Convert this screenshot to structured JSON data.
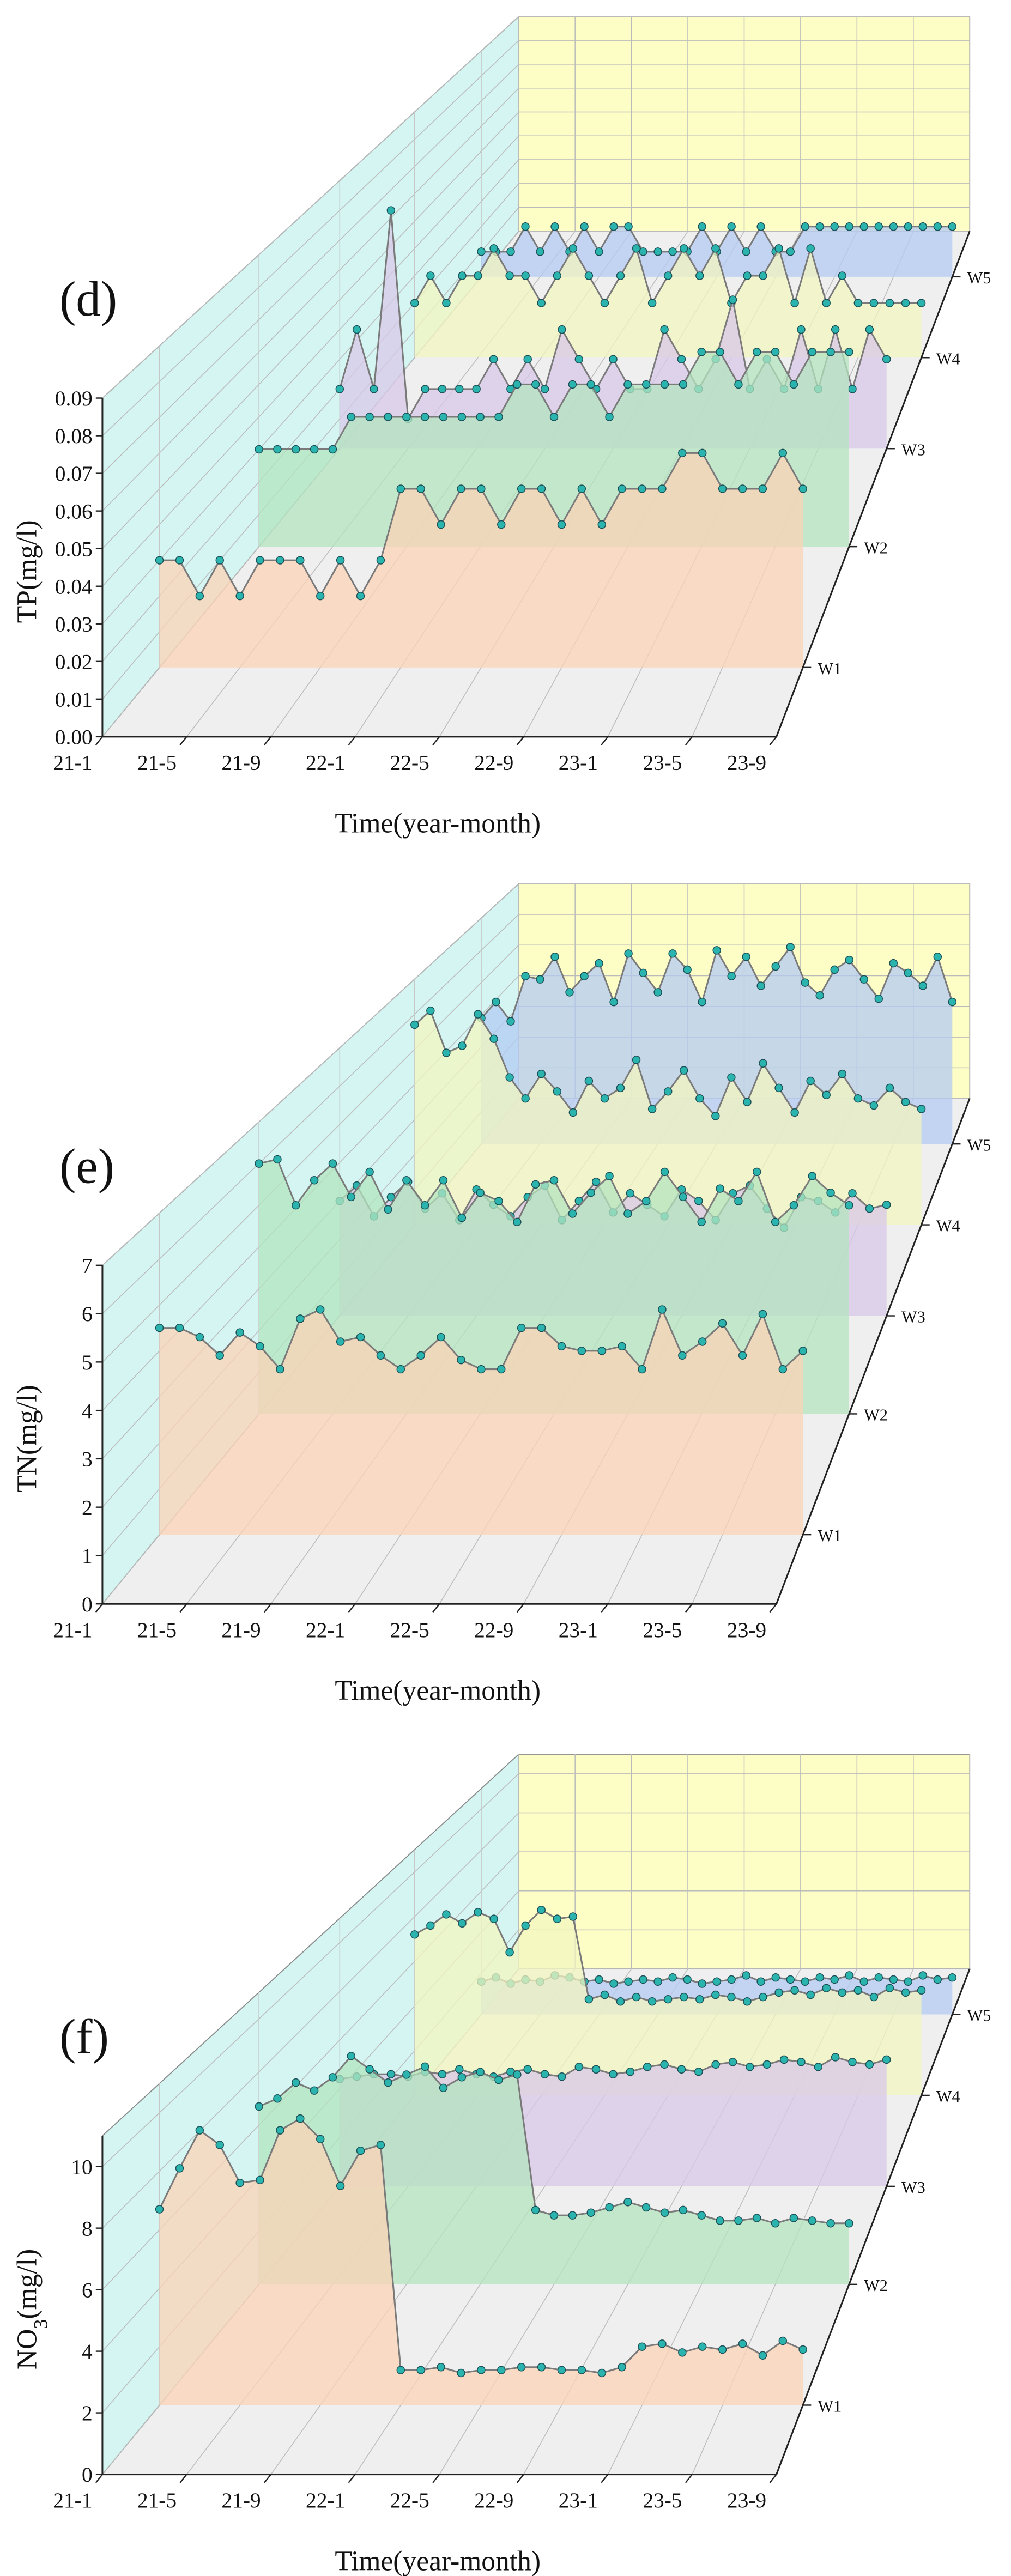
{
  "chart_data": [
    {
      "type": "waterfall",
      "panel_label": "(d)",
      "y_label": "TP(mg/l)",
      "x_label": "Time(year-month)",
      "categories": [
        "21-1",
        null,
        null,
        null,
        "21-5",
        null,
        null,
        null,
        "21-9",
        null,
        null,
        null,
        "22-1",
        null,
        null,
        null,
        "22-5",
        null,
        null,
        null,
        "22-9",
        null,
        null,
        null,
        "23-1",
        null,
        null,
        null,
        "23-5",
        null,
        null,
        null,
        "23-9"
      ],
      "ylim": [
        0,
        0.09
      ],
      "yticks": [
        {
          "value": 0,
          "label": "0.00"
        },
        0.01,
        0.02,
        0.03,
        0.04,
        0.05,
        0.06,
        0.07,
        0.08,
        0.09
      ],
      "line_color": "#7a7a7a",
      "marker_color": "#2bb3ae",
      "grid": true,
      "series": [
        {
          "name": "W1",
          "color": "#fcd3b6",
          "values": [
            0.03,
            0.03,
            0.02,
            0.03,
            0.02,
            0.03,
            0.03,
            0.03,
            0.02,
            0.03,
            0.02,
            0.03,
            0.05,
            0.05,
            0.04,
            0.05,
            0.05,
            0.04,
            0.05,
            0.05,
            0.04,
            0.05,
            0.04,
            0.05,
            0.05,
            0.05,
            0.06,
            0.06,
            0.05,
            0.05,
            0.05,
            0.06,
            0.05
          ]
        },
        {
          "name": "W2",
          "color": "#b3e4bf",
          "values": [
            0.03,
            0.03,
            0.03,
            0.03,
            0.03,
            0.04,
            0.04,
            0.04,
            0.04,
            0.04,
            0.04,
            0.04,
            0.04,
            0.04,
            0.05,
            0.05,
            0.04,
            0.05,
            0.05,
            0.04,
            0.05,
            0.05,
            0.05,
            0.05,
            0.06,
            0.06,
            0.05,
            0.06,
            0.06,
            0.05,
            0.06,
            0.06,
            0.06
          ]
        },
        {
          "name": "W3",
          "color": "#d8c8e8",
          "values": [
            0.02,
            0.04,
            0.02,
            0.08,
            0.01,
            0.02,
            0.02,
            0.02,
            0.02,
            0.03,
            0.02,
            0.03,
            0.02,
            0.04,
            0.03,
            0.02,
            0.03,
            0.02,
            0.02,
            0.04,
            0.03,
            0.02,
            0.03,
            0.05,
            0.02,
            0.03,
            0.02,
            0.04,
            0.02,
            0.04,
            0.02,
            0.04,
            0.03
          ]
        },
        {
          "name": "W4",
          "color": "#f3f5bf",
          "values": [
            0.02,
            0.03,
            0.02,
            0.03,
            0.03,
            0.04,
            0.03,
            0.03,
            0.02,
            0.03,
            0.04,
            0.03,
            0.02,
            0.03,
            0.04,
            0.02,
            0.03,
            0.04,
            0.03,
            0.04,
            0.02,
            0.03,
            0.03,
            0.04,
            0.02,
            0.04,
            0.02,
            0.03,
            0.02,
            0.02,
            0.02,
            0.02,
            0.02
          ]
        },
        {
          "name": "W5",
          "color": "#b3cbf1",
          "values": [
            0.01,
            0.01,
            0.01,
            0.02,
            0.01,
            0.02,
            0.01,
            0.02,
            0.01,
            0.02,
            0.02,
            0.01,
            0.01,
            0.01,
            0.01,
            0.02,
            0.01,
            0.02,
            0.01,
            0.02,
            0.01,
            0.01,
            0.02,
            0.02,
            0.02,
            0.02,
            0.02,
            0.02,
            0.02,
            0.02,
            0.02,
            0.02,
            0.02
          ]
        }
      ]
    },
    {
      "type": "waterfall",
      "panel_label": "(e)",
      "y_label": "TN(mg/l)",
      "x_label": "Time(year-month)",
      "categories": [
        "21-1",
        null,
        null,
        null,
        "21-5",
        null,
        null,
        null,
        "21-9",
        null,
        null,
        null,
        "22-1",
        null,
        null,
        null,
        "22-5",
        null,
        null,
        null,
        "22-9",
        null,
        null,
        null,
        "23-1",
        null,
        null,
        null,
        "23-5",
        null,
        null,
        null,
        "23-9"
      ],
      "ylim": [
        0,
        7
      ],
      "yticks": [
        0,
        1,
        2,
        3,
        4,
        5,
        6,
        7
      ],
      "line_color": "#7a7a7a",
      "marker_color": "#2bb3ae",
      "grid": true,
      "series": [
        {
          "name": "W1",
          "color": "#fcd3b6",
          "values": [
            4.5,
            4.5,
            4.3,
            3.9,
            4.4,
            4.1,
            3.6,
            4.7,
            4.9,
            4.2,
            4.3,
            3.9,
            3.6,
            3.9,
            4.3,
            3.8,
            3.6,
            3.6,
            4.5,
            4.5,
            4.1,
            4.0,
            4.0,
            4.1,
            3.6,
            4.9,
            3.9,
            4.2,
            4.6,
            3.9,
            4.8,
            3.6,
            4.0
          ]
        },
        {
          "name": "W2",
          "color": "#b3e4bf",
          "values": [
            6.0,
            6.1,
            5.0,
            5.6,
            6.0,
            5.2,
            5.8,
            4.9,
            5.6,
            5.0,
            5.6,
            4.7,
            5.3,
            5.1,
            4.6,
            5.5,
            5.6,
            4.8,
            5.3,
            5.7,
            4.8,
            5.1,
            5.8,
            5.2,
            4.6,
            5.4,
            5.1,
            5.8,
            4.6,
            5.0,
            5.7,
            5.3,
            5.0
          ]
        },
        {
          "name": "W3",
          "color": "#d8c8e8",
          "values": [
            3.0,
            3.4,
            2.6,
            3.1,
            3.5,
            2.8,
            3.2,
            2.5,
            3.3,
            2.9,
            2.6,
            3.1,
            3.4,
            2.5,
            3.0,
            3.5,
            2.7,
            3.2,
            2.9,
            2.6,
            3.3,
            3.0,
            2.5,
            3.2,
            3.4,
            2.8,
            2.3,
            3.1,
            3.0,
            2.7,
            3.2,
            2.8,
            2.9
          ]
        },
        {
          "name": "W4",
          "color": "#f3f5bf",
          "values": [
            5.7,
            6.1,
            4.9,
            5.1,
            6.0,
            5.3,
            4.2,
            3.6,
            4.3,
            3.8,
            3.2,
            4.1,
            3.6,
            3.9,
            4.7,
            3.3,
            3.8,
            4.4,
            3.6,
            3.1,
            4.2,
            3.5,
            4.6,
            3.9,
            3.2,
            4.1,
            3.7,
            4.3,
            3.6,
            3.4,
            3.9,
            3.5,
            3.3
          ]
        },
        {
          "name": "W5",
          "color": "#b3cbf1",
          "values": [
            3.9,
            4.4,
            3.8,
            5.2,
            5.1,
            5.8,
            4.7,
            5.2,
            5.6,
            4.4,
            5.9,
            5.3,
            4.7,
            5.9,
            5.4,
            4.4,
            6.0,
            5.2,
            5.8,
            4.9,
            5.5,
            6.1,
            5.0,
            4.6,
            5.4,
            5.7,
            5.1,
            4.5,
            5.6,
            5.3,
            4.9,
            5.8,
            4.4
          ]
        }
      ]
    },
    {
      "type": "waterfall",
      "panel_label": "(f)",
      "y_label": [
        "NO",
        "3",
        "(mg/l)"
      ],
      "x_label": "Time(year-month)",
      "categories": [
        "21-1",
        null,
        null,
        null,
        "21-5",
        null,
        null,
        null,
        "21-9",
        null,
        null,
        null,
        "22-1",
        null,
        null,
        null,
        "22-5",
        null,
        null,
        null,
        "22-9",
        null,
        null,
        null,
        "23-1",
        null,
        null,
        null,
        "23-5",
        null,
        null,
        null,
        "23-9"
      ],
      "ylim": [
        0,
        11
      ],
      "yticks": [
        0,
        2,
        4,
        6,
        8,
        10
      ],
      "line_color": "#7a7a7a",
      "marker_color": "#2bb3ae",
      "grid": true,
      "series": [
        {
          "name": "W1",
          "color": "#fcd3b6",
          "values": [
            6.7,
            8.1,
            9.4,
            8.9,
            7.6,
            7.7,
            9.4,
            9.8,
            9.1,
            7.5,
            8.7,
            8.9,
            1.2,
            1.2,
            1.3,
            1.1,
            1.2,
            1.2,
            1.3,
            1.3,
            1.2,
            1.2,
            1.1,
            1.3,
            2.0,
            2.1,
            1.8,
            2.0,
            1.9,
            2.1,
            1.7,
            2.2,
            1.9
          ]
        },
        {
          "name": "W2",
          "color": "#b3e4bf",
          "values": [
            6.7,
            7.0,
            7.6,
            7.3,
            7.8,
            8.6,
            8.1,
            7.6,
            7.9,
            8.2,
            7.4,
            7.8,
            8.0,
            7.7,
            7.9,
            2.8,
            2.6,
            2.6,
            2.7,
            2.9,
            3.1,
            2.9,
            2.7,
            2.8,
            2.6,
            2.4,
            2.4,
            2.5,
            2.3,
            2.5,
            2.4,
            2.3,
            2.3
          ]
        },
        {
          "name": "W3",
          "color": "#d8c8e8",
          "values": [
            4.4,
            4.5,
            4.6,
            4.6,
            4.5,
            4.7,
            4.6,
            4.8,
            4.6,
            4.5,
            4.7,
            4.8,
            4.6,
            4.5,
            4.9,
            4.8,
            4.6,
            4.7,
            4.9,
            5.0,
            4.8,
            4.7,
            5.0,
            5.1,
            4.9,
            5.0,
            5.2,
            5.1,
            4.9,
            5.3,
            5.1,
            5.0,
            5.2
          ]
        },
        {
          "name": "W4",
          "color": "#f3f5bf",
          "values": [
            7.2,
            7.6,
            8.1,
            7.7,
            8.2,
            7.9,
            6.4,
            7.6,
            8.3,
            7.9,
            8.0,
            4.3,
            4.5,
            4.2,
            4.4,
            4.2,
            4.3,
            4.4,
            4.3,
            4.5,
            4.4,
            4.2,
            4.4,
            4.6,
            4.7,
            4.5,
            4.8,
            4.6,
            4.7,
            4.4,
            4.8,
            4.6,
            4.7
          ]
        },
        {
          "name": "W5",
          "color": "#b3cbf1",
          "values": [
            1.6,
            1.8,
            1.5,
            1.7,
            1.6,
            1.9,
            1.8,
            1.6,
            1.7,
            1.5,
            1.6,
            1.7,
            1.6,
            1.8,
            1.7,
            1.5,
            1.6,
            1.7,
            1.9,
            1.6,
            1.8,
            1.7,
            1.6,
            1.8,
            1.7,
            1.9,
            1.6,
            1.8,
            1.7,
            1.6,
            1.9,
            1.7,
            1.8
          ]
        }
      ]
    }
  ]
}
